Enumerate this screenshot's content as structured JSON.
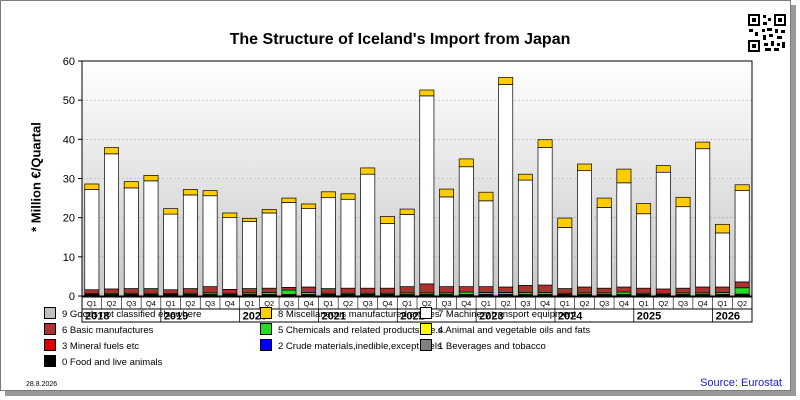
{
  "chart_data": {
    "type": "bar",
    "stacked": true,
    "title": "The Structure of Iceland's Import from Japan",
    "ylabel": "* Million €/Quartal",
    "ylim": [
      0,
      60
    ],
    "yticks": [
      0,
      10,
      20,
      30,
      40,
      50,
      60
    ],
    "grid": true,
    "legend_position": "bottom",
    "categories": [
      "Q1",
      "Q2",
      "Q3",
      "Q4",
      "Q1",
      "Q2",
      "Q3",
      "Q4",
      "Q1",
      "Q2",
      "Q3",
      "Q4",
      "Q1",
      "Q2",
      "Q3",
      "Q4",
      "Q1",
      "Q2",
      "Q3",
      "Q4",
      "Q1",
      "Q2",
      "Q3",
      "Q4",
      "Q1",
      "Q2",
      "Q3",
      "Q4",
      "Q1",
      "Q2",
      "Q3",
      "Q4",
      "Q1",
      "Q2"
    ],
    "years": [
      {
        "label": "2018",
        "quarters": 4
      },
      {
        "label": "2019",
        "quarters": 4
      },
      {
        "label": "2020",
        "quarters": 4
      },
      {
        "label": "2021",
        "quarters": 4
      },
      {
        "label": "2022",
        "quarters": 4
      },
      {
        "label": "2023",
        "quarters": 4
      },
      {
        "label": "2024",
        "quarters": 4
      },
      {
        "label": "2025",
        "quarters": 4
      },
      {
        "label": "2026",
        "quarters": 2
      }
    ],
    "series": [
      {
        "name": "0 Food and live animals",
        "color": "#000000",
        "values": [
          0.1,
          0.1,
          0.1,
          0.1,
          0.1,
          0.1,
          0.1,
          0.1,
          0.1,
          0.1,
          0.1,
          0.1,
          0.1,
          0.1,
          0.1,
          0.1,
          0.1,
          0.1,
          0.1,
          0.1,
          0.1,
          0.1,
          0.1,
          0.1,
          0.1,
          0.1,
          0.1,
          0.1,
          0.1,
          0.1,
          0.1,
          0.1,
          0.1,
          0.1
        ]
      },
      {
        "name": "1 Beverages and tobacco",
        "color": "#808080",
        "values": [
          0.1,
          0.1,
          0.1,
          0.1,
          0.1,
          0.1,
          0.1,
          0.1,
          0.1,
          0.1,
          0.1,
          0.1,
          0.1,
          0.1,
          0.1,
          0.1,
          0.1,
          0.1,
          0.1,
          0.1,
          0.1,
          0.1,
          0.1,
          0.1,
          0.1,
          0.1,
          0.1,
          0.1,
          0.1,
          0.1,
          0.1,
          0.1,
          0.1,
          0.1
        ]
      },
      {
        "name": "2 Crude materials,inedible,except fuels",
        "color": "#0000ff",
        "values": [
          0.05,
          0.05,
          0.05,
          0.05,
          0.05,
          0.05,
          0.05,
          0.05,
          0.05,
          0.05,
          0.05,
          0.05,
          0.05,
          0.05,
          0.05,
          0.05,
          0.05,
          0.05,
          0.05,
          0.05,
          0.05,
          0.05,
          0.05,
          0.05,
          0.05,
          0.05,
          0.05,
          0.05,
          0.05,
          0.05,
          0.05,
          0.05,
          0.05,
          0.05
        ]
      },
      {
        "name": "3 Mineral fuels etc",
        "color": "#e00000",
        "values": [
          0.1,
          0.1,
          0.1,
          0.1,
          0.1,
          0.1,
          0.1,
          0.1,
          0.1,
          0.1,
          0.1,
          0.1,
          0.1,
          0.1,
          0.1,
          0.1,
          0.1,
          0.1,
          0.1,
          0.1,
          0.1,
          0.1,
          0.1,
          0.1,
          0.1,
          0.1,
          0.1,
          0.1,
          0.1,
          0.1,
          0.1,
          0.1,
          0.1,
          0.2
        ]
      },
      {
        "name": "4 Animal and vegetable oils and fats",
        "color": "#ffff00",
        "values": [
          0.05,
          0.05,
          0.05,
          0.05,
          0.05,
          0.05,
          0.05,
          0.05,
          0.05,
          0.05,
          0.05,
          0.05,
          0.05,
          0.05,
          0.05,
          0.05,
          0.05,
          0.05,
          0.05,
          0.05,
          0.05,
          0.05,
          0.05,
          0.05,
          0.05,
          0.05,
          0.05,
          0.05,
          0.05,
          0.05,
          0.05,
          0.05,
          0.05,
          0.05
        ]
      },
      {
        "name": "5 Chemicals and related products,n.e.s.",
        "color": "#22dd22",
        "values": [
          0.2,
          0.3,
          0.3,
          0.3,
          0.2,
          0.3,
          0.4,
          0.3,
          0.4,
          0.5,
          1.1,
          0.5,
          0.3,
          0.3,
          0.3,
          0.3,
          0.4,
          0.4,
          0.4,
          0.6,
          0.5,
          0.5,
          0.5,
          0.5,
          0.3,
          0.4,
          0.4,
          0.6,
          0.3,
          0.3,
          0.4,
          0.4,
          0.5,
          1.6
        ]
      },
      {
        "name": "6 Basic manufactures",
        "color": "#b03030",
        "values": [
          1.0,
          1.1,
          1.2,
          1.2,
          1.0,
          1.2,
          1.6,
          1.0,
          1.1,
          1.1,
          0.7,
          1.4,
          1.2,
          1.3,
          1.3,
          1.3,
          1.6,
          2.3,
          1.6,
          1.4,
          1.5,
          1.4,
          1.8,
          1.9,
          1.2,
          1.5,
          1.2,
          1.3,
          1.3,
          1.1,
          1.2,
          1.5,
          1.4,
          1.5
        ]
      },
      {
        "name": "7 Machinery,transport equipment",
        "color": "#ffffff",
        "values": [
          25.6,
          34.5,
          25.7,
          27.5,
          19.3,
          23.9,
          23.2,
          18.3,
          17.1,
          19.2,
          21.7,
          20.0,
          23.2,
          22.7,
          29.1,
          16.5,
          18.4,
          48.0,
          22.9,
          30.6,
          21.9,
          51.7,
          26.9,
          35.1,
          15.6,
          29.7,
          20.6,
          26.6,
          19.0,
          29.8,
          20.8,
          35.3,
          13.8,
          23.3
        ]
      },
      {
        "name": "8 Miscellaneous manufactured articles",
        "color": "#ffcc00",
        "values": [
          1.4,
          1.6,
          1.6,
          1.4,
          1.4,
          1.4,
          1.3,
          1.2,
          0.8,
          0.9,
          1.1,
          1.2,
          1.5,
          1.4,
          1.6,
          1.8,
          1.4,
          1.5,
          2.0,
          2.0,
          2.2,
          1.8,
          1.5,
          2.0,
          2.4,
          1.7,
          2.4,
          3.5,
          2.6,
          1.7,
          2.4,
          1.7,
          2.2,
          1.5
        ]
      },
      {
        "name": "9 Goods not classified elsewhere",
        "color": "#c0c0c0",
        "values": [
          0,
          0,
          0,
          0,
          0,
          0,
          0,
          0,
          0,
          0,
          0,
          0,
          0,
          0,
          0,
          0,
          0,
          0,
          0,
          0,
          0,
          0,
          0,
          0,
          0,
          0,
          0,
          0,
          0,
          0,
          0,
          0,
          0,
          0
        ]
      }
    ]
  },
  "legend_order": [
    9,
    8,
    7,
    6,
    5,
    4,
    3,
    2,
    1,
    0
  ],
  "footer": {
    "date": "28.8.2026",
    "source": "Source: Eurostat"
  }
}
